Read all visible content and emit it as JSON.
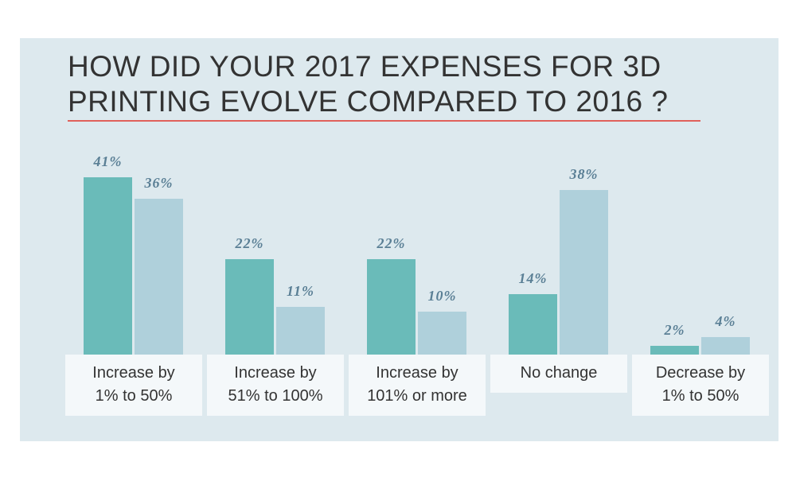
{
  "chart_data": {
    "type": "bar",
    "title": "HOW DID YOUR 2017 EXPENSES FOR 3D PRINTING EVOLVE COMPARED TO 2016 ?",
    "categories": [
      "Increase by 1% to 50%",
      "Increase by 51% to 100%",
      "Increase by 101% or more",
      "No change",
      "Decrease by 1% to 50%"
    ],
    "series": [
      {
        "color": "#6abbb9",
        "values": [
          41,
          22,
          22,
          14,
          2
        ],
        "value_labels": [
          "41%",
          "22%",
          "22%",
          "14%",
          "2%"
        ]
      },
      {
        "color": "#afd0db",
        "values": [
          36,
          11,
          10,
          38,
          4
        ],
        "value_labels": [
          "36%",
          "11%",
          "10%",
          "38%",
          "4%"
        ]
      }
    ]
  }
}
